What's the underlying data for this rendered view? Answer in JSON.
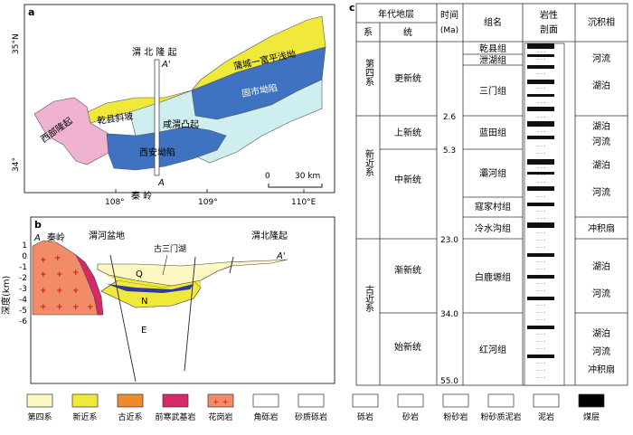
{
  "panel_a": {
    "tag": "a",
    "lat_35": "35°N",
    "lat_34": "34°",
    "lon_108": "108°",
    "lon_109": "109°",
    "lon_110": "110°E",
    "scale_0": "0",
    "scale_30": "30 km",
    "section_A": "A",
    "section_A2": "A'",
    "regions": {
      "weibei_uplift": "渭 北 隆 起",
      "pucheng_fuping": "蒲城一富平浅坳",
      "gushi": "固市坳陷",
      "western_uplift": "西部隆起",
      "qianxian_slope": "乾县斜坡",
      "xianwei_bulge": "咸渭凸起",
      "xi_an_depression": "西安坳陷",
      "qinling": "秦 岭"
    }
  },
  "panel_b": {
    "tag": "b",
    "yaxis": "深度(km)",
    "ticks": [
      "1",
      "0",
      "-1",
      "-2",
      "-3",
      "-4",
      "-5",
      "-6"
    ],
    "A": "A",
    "A2": "A'",
    "qinling": "秦岭",
    "weihe_basin": "渭河盆地",
    "ancient_lake": "古三门湖",
    "weibei": "渭北隆起",
    "unit_Q": "Q",
    "unit_N": "N",
    "unit_E": "E"
  },
  "panel_c": {
    "tag": "c",
    "headers": {
      "era": "年代地层",
      "system": "系",
      "series": "统",
      "time": "时间",
      "time_unit": "(Ma)",
      "group": "组名",
      "lith": "岩性",
      "lith2": "剖面",
      "facies": "沉积相"
    },
    "systems": [
      "第四系",
      "新近系",
      "古近系"
    ],
    "series": [
      "更新统",
      "上新统",
      "中新统",
      "渐新统",
      "始新统"
    ],
    "times": [
      "2.6",
      "5.3",
      "23.0",
      "34.0",
      "55.0"
    ],
    "groups": [
      "乾县组",
      "泄湖组",
      "三门组",
      "蓝田组",
      "灞河组",
      "寇家村组",
      "冷水沟组",
      "白鹿塬组",
      "红河组"
    ],
    "facies": [
      "河流",
      "湖泊",
      "湖泊",
      "河流",
      "湖泊",
      "河流",
      "冲积扇",
      "湖泊",
      "河流",
      "湖泊",
      "河流",
      "冲积扇"
    ]
  },
  "legend": [
    {
      "label": "第四系",
      "color": "#fdf7c4"
    },
    {
      "label": "新近系",
      "color": "#f1e83c"
    },
    {
      "label": "古近系",
      "color": "#ef8b2c"
    },
    {
      "label": "前寒武基岩",
      "color": "#d42a67"
    },
    {
      "label": "花岗岩",
      "color": "#f28b68"
    },
    {
      "label": "角砾岩",
      "color": "#ffffff"
    },
    {
      "label": "砂质砾岩",
      "color": "#ffffff"
    },
    {
      "label": "砾岩",
      "color": "#ffffff"
    },
    {
      "label": "砂岩",
      "color": "#ffffff"
    },
    {
      "label": "粉砂岩",
      "color": "#ffffff"
    },
    {
      "label": "粉砂质泥岩",
      "color": "#ffffff"
    },
    {
      "label": "泥岩",
      "color": "#ffffff"
    },
    {
      "label": "煤层",
      "color": "#000000"
    }
  ]
}
